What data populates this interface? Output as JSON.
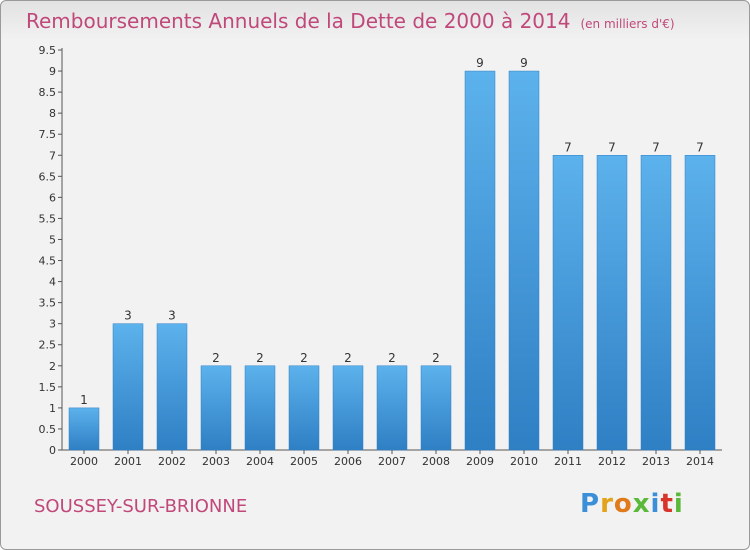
{
  "chart_data": {
    "type": "bar",
    "title": "Remboursements Annuels de la Dette de 2000 à 2014",
    "unit": "(en milliers d'€)",
    "categories": [
      "2000",
      "2001",
      "2002",
      "2003",
      "2004",
      "2005",
      "2006",
      "2007",
      "2008",
      "2009",
      "2010",
      "2011",
      "2012",
      "2013",
      "2014"
    ],
    "values": [
      1,
      3,
      3,
      2,
      2,
      2,
      2,
      2,
      2,
      9,
      9,
      7,
      7,
      7,
      7
    ],
    "data_labels": [
      "1",
      "3",
      "3",
      "2",
      "2",
      "2",
      "2",
      "2",
      "2",
      "9",
      "9",
      "7",
      "7",
      "7",
      "7"
    ],
    "yticks": [
      "0",
      "0.5",
      "1",
      "1.5",
      "2",
      "2.5",
      "3",
      "3.5",
      "4",
      "4.5",
      "5",
      "5.5",
      "6",
      "6.5",
      "7",
      "7.5",
      "8",
      "8.5",
      "9",
      "9.5"
    ],
    "ylim": [
      0,
      9.5
    ],
    "grid": false,
    "bar_color": "#4a9fe0",
    "title_color": "#c0487a"
  },
  "commune": "SOUSSEY-SUR-BRIONNE",
  "logo": {
    "letters": [
      "P",
      "r",
      "o",
      "x",
      "i",
      "t",
      "i"
    ],
    "colors": [
      "#3a8fd8",
      "#e2a21a",
      "#e07a1a",
      "#5ab83a",
      "#3a8fd8",
      "#d8342a",
      "#5ab83a"
    ]
  }
}
